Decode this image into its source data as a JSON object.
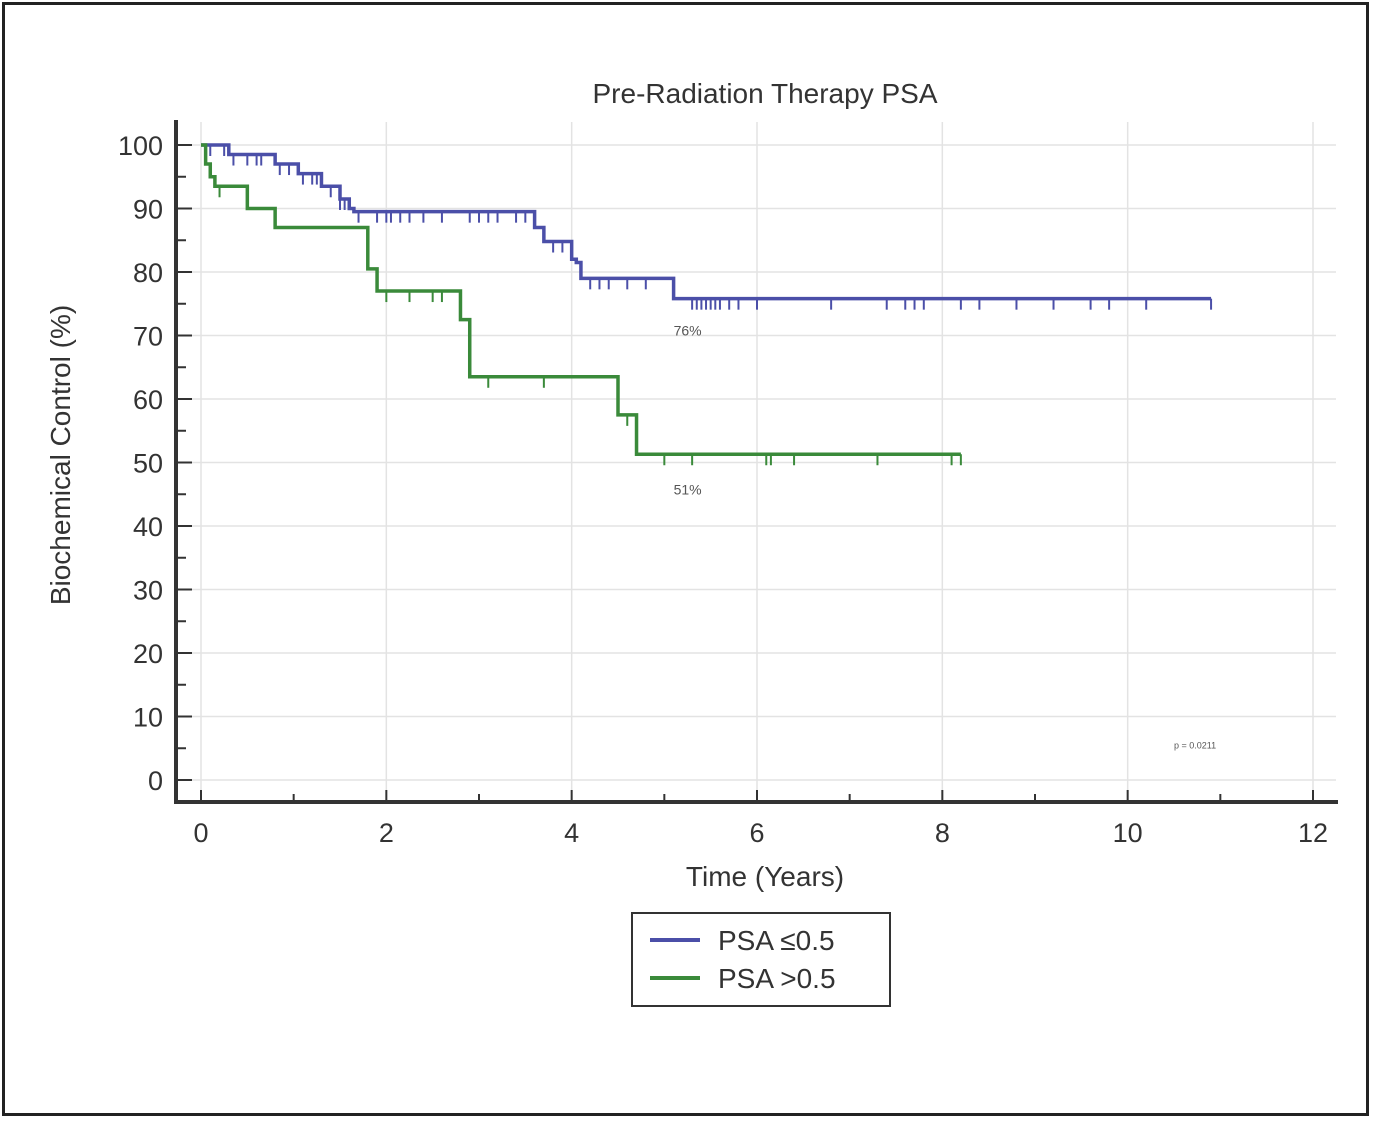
{
  "chart_data": {
    "type": "line",
    "title": "Pre-Radiation Therapy PSA",
    "xlabel": "Time (Years)",
    "ylabel": "Biochemical Control (%)",
    "xlim": [
      0,
      12
    ],
    "ylim": [
      0,
      100
    ],
    "x_ticks": [
      0,
      2,
      4,
      6,
      8,
      10,
      12
    ],
    "y_ticks": [
      0,
      10,
      20,
      30,
      40,
      50,
      60,
      70,
      80,
      90,
      100
    ],
    "grid": true,
    "legend_position": "bottom-center",
    "series": [
      {
        "name": "PSA ≤0.5",
        "color": "#4b4fa8",
        "steps": [
          [
            0,
            100
          ],
          [
            0.3,
            98.5
          ],
          [
            0.8,
            97
          ],
          [
            1.05,
            95.5
          ],
          [
            1.3,
            93.5
          ],
          [
            1.5,
            91.5
          ],
          [
            1.6,
            90
          ],
          [
            1.65,
            89.5
          ],
          [
            3.6,
            87
          ],
          [
            3.7,
            84.8
          ],
          [
            4.0,
            82
          ],
          [
            4.05,
            81.5
          ],
          [
            4.1,
            79
          ],
          [
            5.1,
            75.8
          ],
          [
            10.9,
            75.8
          ]
        ],
        "censor_x": [
          0.1,
          0.25,
          0.35,
          0.5,
          0.6,
          0.65,
          0.85,
          0.95,
          1.1,
          1.2,
          1.25,
          1.4,
          1.5,
          1.55,
          1.7,
          1.9,
          2.0,
          2.05,
          2.15,
          2.25,
          2.4,
          2.6,
          2.9,
          3.0,
          3.1,
          3.2,
          3.4,
          3.5,
          3.8,
          3.9,
          4.2,
          4.3,
          4.4,
          4.6,
          4.8,
          5.3,
          5.35,
          5.4,
          5.45,
          5.5,
          5.55,
          5.6,
          5.7,
          5.8,
          6.0,
          6.8,
          7.4,
          7.6,
          7.7,
          7.8,
          8.2,
          8.4,
          8.8,
          9.2,
          9.6,
          9.8,
          10.2,
          10.9
        ]
      },
      {
        "name": "PSA >0.5",
        "color": "#3a8a3a",
        "steps": [
          [
            0,
            100
          ],
          [
            0.05,
            97
          ],
          [
            0.1,
            95
          ],
          [
            0.15,
            93.5
          ],
          [
            0.5,
            90
          ],
          [
            0.8,
            87
          ],
          [
            1.8,
            80.5
          ],
          [
            1.9,
            77
          ],
          [
            2.8,
            72.5
          ],
          [
            2.9,
            63.5
          ],
          [
            4.5,
            57.5
          ],
          [
            4.7,
            51.3
          ],
          [
            8.2,
            51.3
          ]
        ],
        "censor_x": [
          0.2,
          2.0,
          2.25,
          2.5,
          2.6,
          3.1,
          3.7,
          4.6,
          5.0,
          5.3,
          6.1,
          6.15,
          6.4,
          7.3,
          8.1,
          8.2
        ]
      }
    ],
    "annotations": [
      {
        "text": "76%",
        "x": 5.1,
        "y": 70
      },
      {
        "text": "51%",
        "x": 5.1,
        "y": 45
      },
      {
        "text": "p = 0.0211",
        "x": 10.5,
        "y": 5
      }
    ]
  }
}
